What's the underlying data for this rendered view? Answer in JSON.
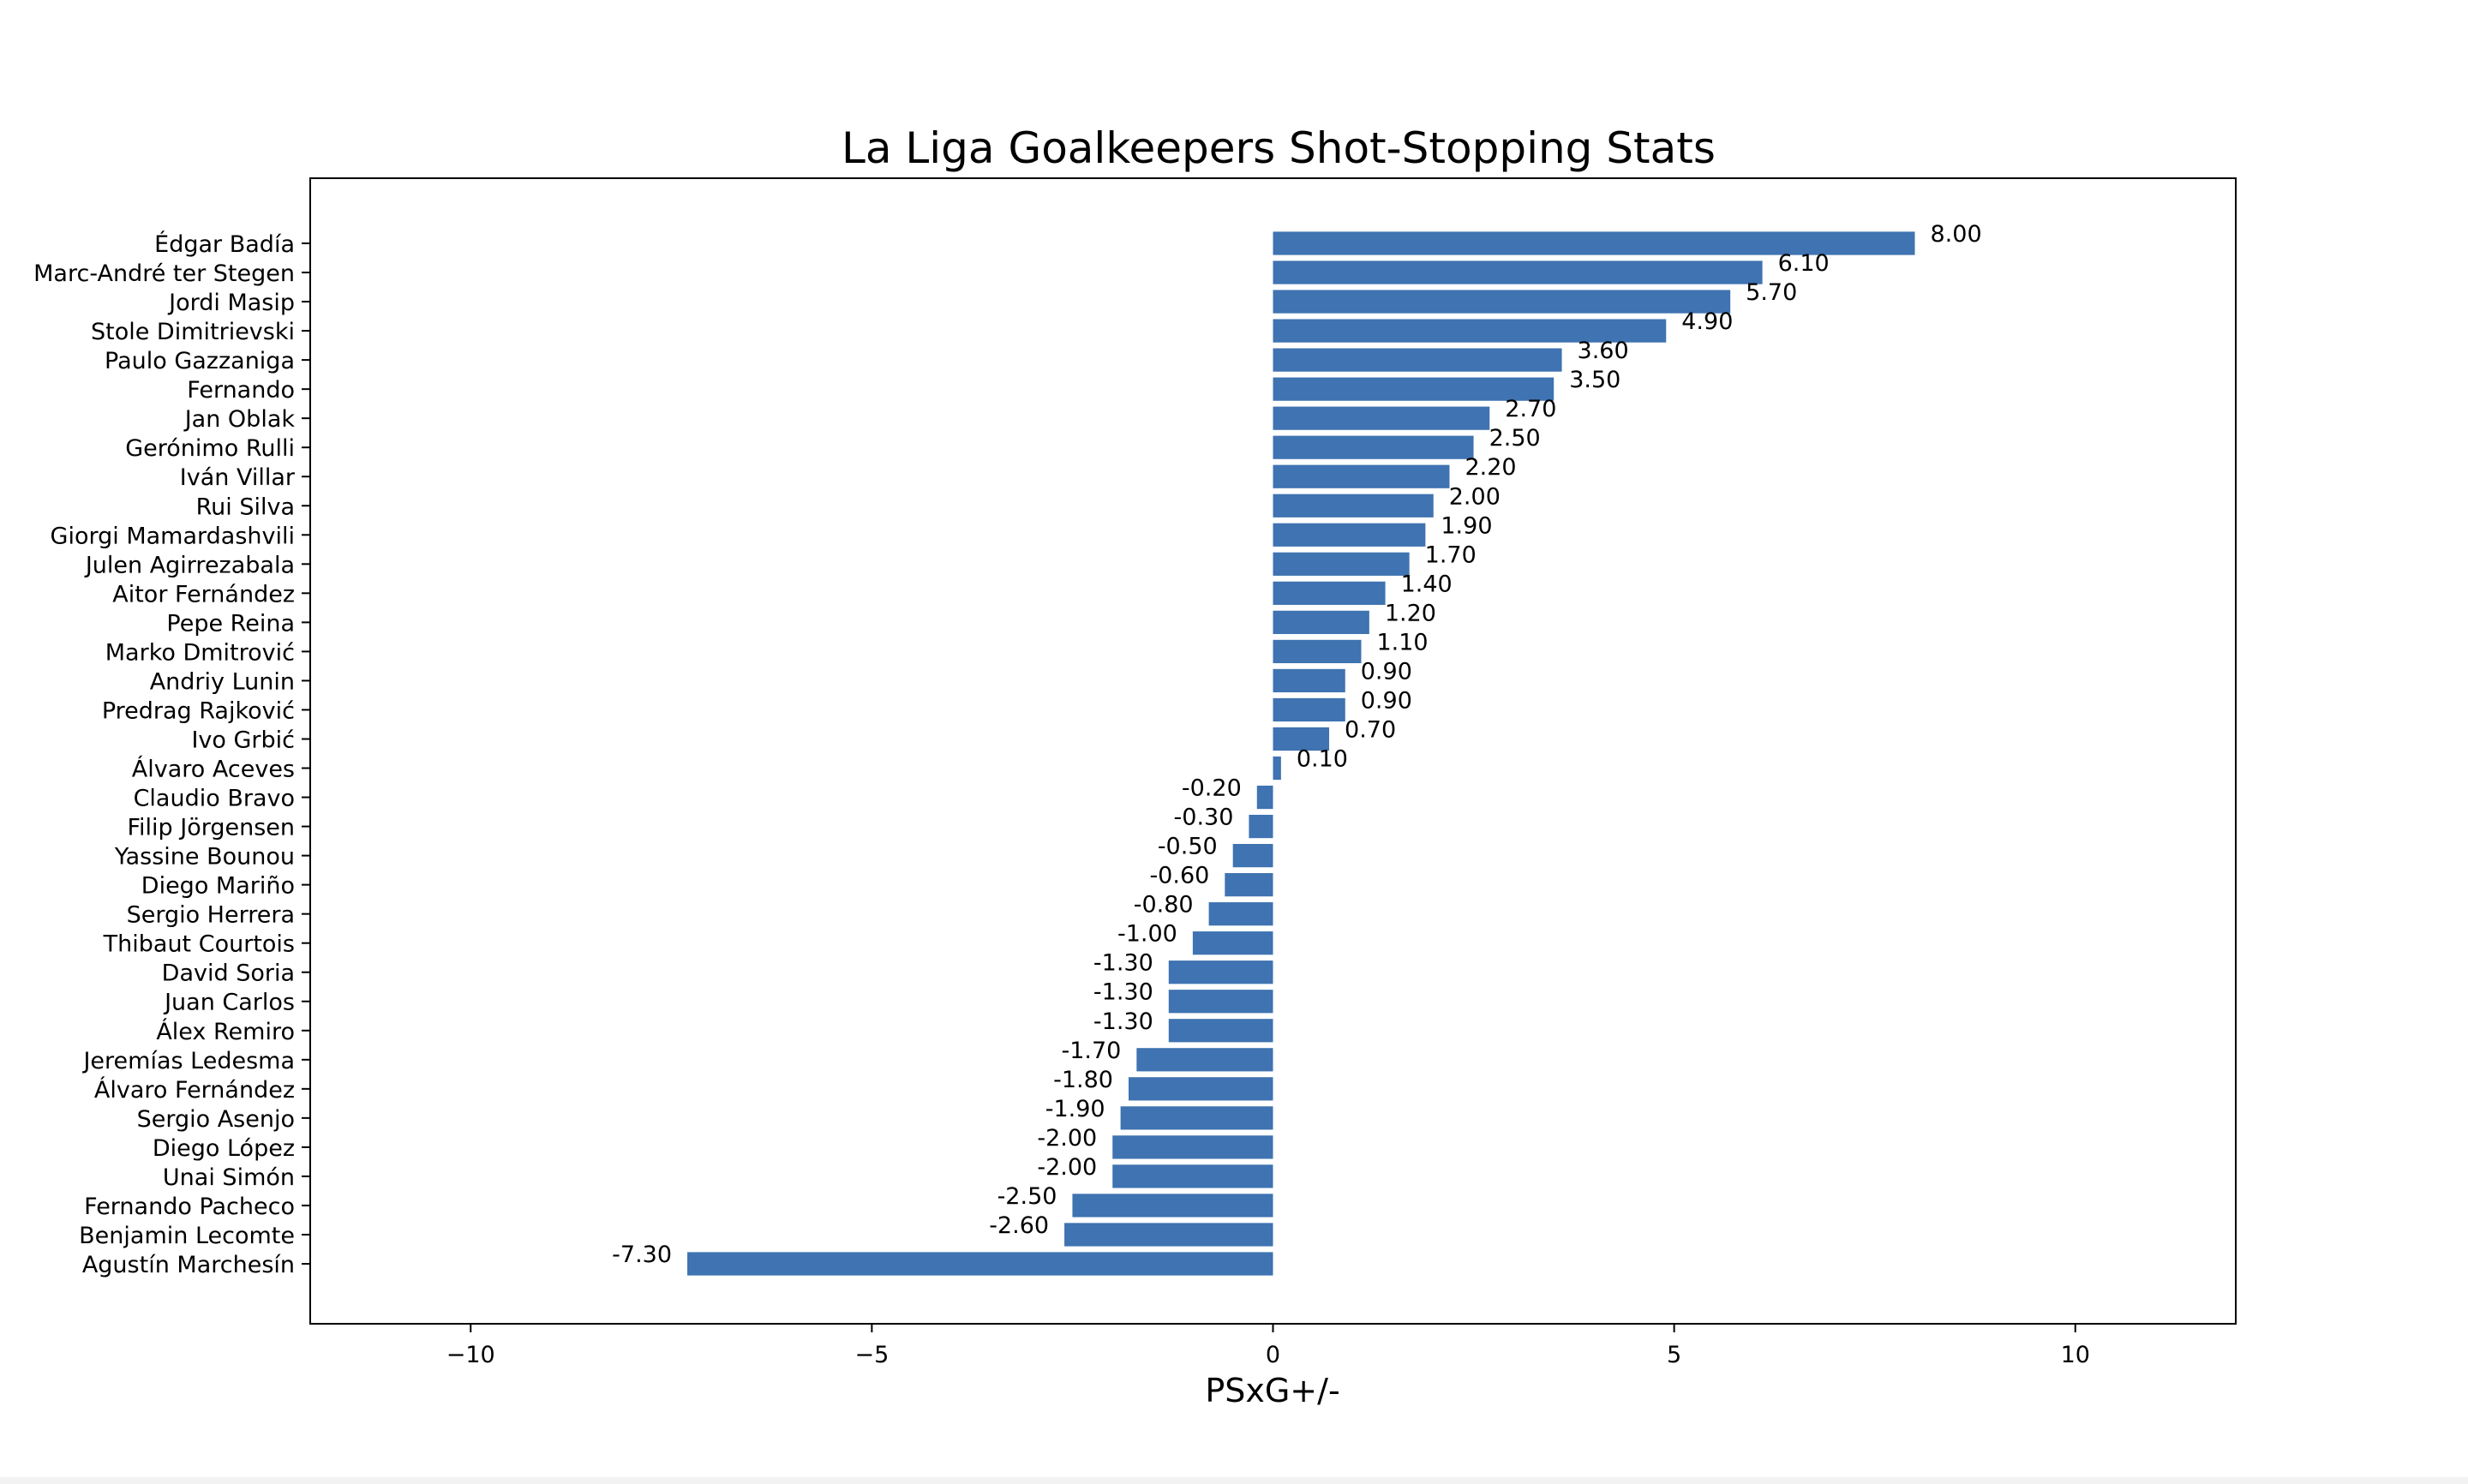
{
  "chart_data": {
    "type": "bar",
    "orientation": "horizontal",
    "title": "La Liga Goalkeepers Shot-Stopping Stats",
    "xlabel": "PSxG+/-",
    "ylabel": "",
    "xlim": [
      -12,
      12
    ],
    "xticks": [
      -10,
      -5,
      0,
      5,
      10
    ],
    "xtick_labels": [
      "−10",
      "−5",
      "0",
      "5",
      "10"
    ],
    "bar_color": "#3f73b1",
    "grid": false,
    "categories": [
      "Édgar Badía",
      "Marc-André ter Stegen",
      "Jordi Masip",
      "Stole Dimitrievski",
      "Paulo Gazzaniga",
      "Fernando",
      "Jan Oblak",
      "Gerónimo Rulli",
      "Iván Villar",
      "Rui Silva",
      "Giorgi Mamardashvili",
      "Julen Agirrezabala",
      "Aitor Fernández",
      "Pepe Reina",
      "Marko Dmitrović",
      "Andriy Lunin",
      "Predrag Rajković",
      "Ivo Grbić",
      "Álvaro Aceves",
      "Claudio Bravo",
      "Filip Jörgensen",
      "Yassine Bounou",
      "Diego Mariño",
      "Sergio Herrera",
      "Thibaut Courtois",
      "David Soria",
      "Juan Carlos",
      "Álex Remiro",
      "Jeremías Ledesma",
      "Álvaro Fernández",
      "Sergio Asenjo",
      "Diego López",
      "Unai Simón",
      "Fernando Pacheco",
      "Benjamin Lecomte",
      "Agustín Marchesín"
    ],
    "values": [
      8.0,
      6.1,
      5.7,
      4.9,
      3.6,
      3.5,
      2.7,
      2.5,
      2.2,
      2.0,
      1.9,
      1.7,
      1.4,
      1.2,
      1.1,
      0.9,
      0.9,
      0.7,
      0.1,
      -0.2,
      -0.3,
      -0.5,
      -0.6,
      -0.8,
      -1.0,
      -1.3,
      -1.3,
      -1.3,
      -1.7,
      -1.8,
      -1.9,
      -2.0,
      -2.0,
      -2.5,
      -2.6,
      -7.3
    ],
    "value_labels": [
      "8.00",
      "6.10",
      "5.70",
      "4.90",
      "3.60",
      "3.50",
      "2.70",
      "2.50",
      "2.20",
      "2.00",
      "1.90",
      "1.70",
      "1.40",
      "1.20",
      "1.10",
      "0.90",
      "0.90",
      "0.70",
      "0.10",
      "-0.20",
      "-0.30",
      "-0.50",
      "-0.60",
      "-0.80",
      "-1.00",
      "-1.30",
      "-1.30",
      "-1.30",
      "-1.70",
      "-1.80",
      "-1.90",
      "-2.00",
      "-2.00",
      "-2.50",
      "-2.60",
      "-7.30"
    ]
  }
}
